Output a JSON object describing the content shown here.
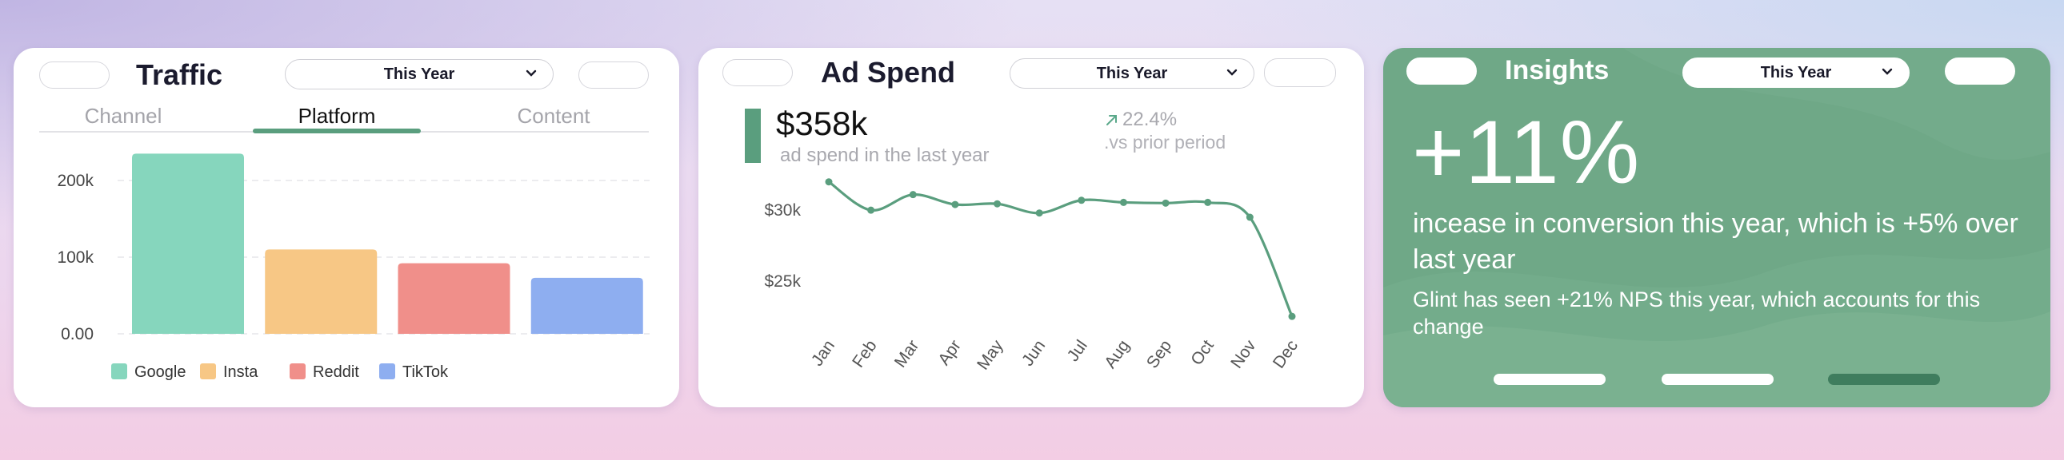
{
  "traffic": {
    "title": "Traffic",
    "period": "This Year",
    "tabs": [
      {
        "label": "Channel",
        "active": false
      },
      {
        "label": "Platform",
        "active": true
      },
      {
        "label": "Content",
        "active": false
      }
    ],
    "chart_data": {
      "type": "bar",
      "categories": [
        "Google",
        "Insta",
        "Reddit",
        "TikTok"
      ],
      "values": [
        235000,
        110000,
        92000,
        73000
      ],
      "colors": [
        "#86d6bd",
        "#f7c785",
        "#f08f8a",
        "#8eaef0"
      ],
      "ytick_labels": [
        "200k",
        "100k",
        "0.00"
      ],
      "ylim": [
        0,
        250000
      ],
      "grid": true,
      "legend": "bottom",
      "legend_labels": [
        "Google",
        "Insta",
        "Reddit",
        "TikTok"
      ]
    }
  },
  "ad_spend": {
    "title": "Ad Spend",
    "period": "This Year",
    "amount": "$358k",
    "subtitle": "ad spend in the last year",
    "change": "22.4%",
    "change_caption": ".vs prior period",
    "accent": "#5a9e7e",
    "chart_data": {
      "type": "line",
      "x": [
        "Jan",
        "Feb",
        "Mar",
        "Apr",
        "May",
        "Jun",
        "Jul",
        "Aug",
        "Sep",
        "Oct",
        "Nov",
        "Dec"
      ],
      "values": [
        32000,
        30000,
        31100,
        30400,
        30450,
        29800,
        30700,
        30550,
        30500,
        30550,
        29500,
        22500
      ],
      "ytick_labels": [
        "$30k",
        "$25k"
      ],
      "yticks": [
        30000,
        25000
      ],
      "ylim": [
        22000,
        33000
      ],
      "color": "#5a9e7e"
    }
  },
  "insights": {
    "title": "Insights",
    "period": "This Year",
    "headline": "+11%",
    "body": "incease in conversion this year, which is +5% over last year",
    "detail": "Glint has seen +21% NPS this year, which accounts for this change",
    "background": "#6fa887",
    "pagination_active": 3
  }
}
